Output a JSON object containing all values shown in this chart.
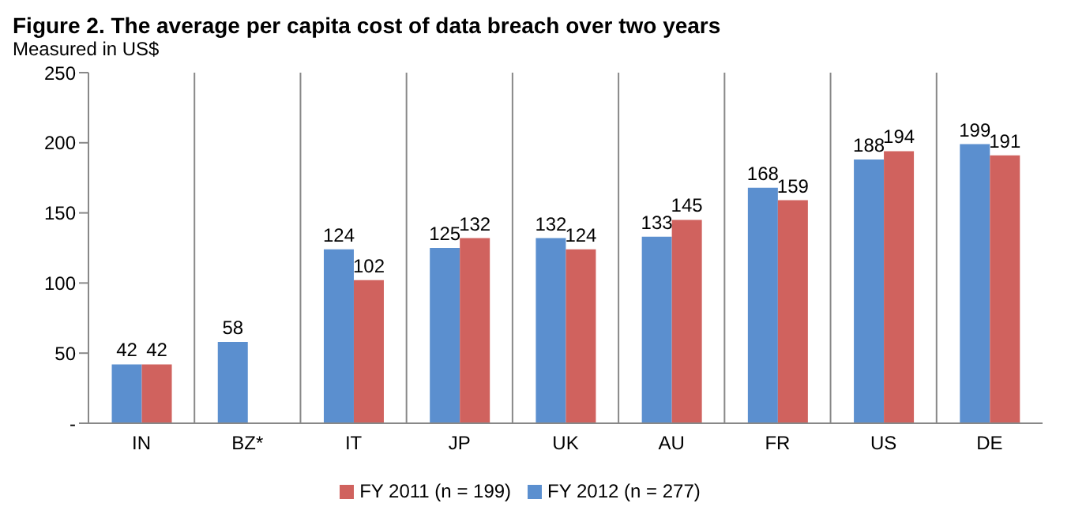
{
  "chart_data": {
    "type": "bar",
    "title": "Figure 2. The average per capita cost of data breach over two years",
    "subtitle": "Measured in US$",
    "categories": [
      "IN",
      "BZ*",
      "IT",
      "JP",
      "UK",
      "AU",
      "FR",
      "US",
      "DE"
    ],
    "series": [
      {
        "name": "FY 2012 (n = 277)",
        "color": "#5b8fcf",
        "values": [
          42,
          58,
          124,
          125,
          132,
          133,
          168,
          188,
          199
        ]
      },
      {
        "name": "FY 2011 (n = 199)",
        "color": "#d0625e",
        "values": [
          42,
          null,
          102,
          132,
          124,
          145,
          159,
          194,
          191
        ]
      }
    ],
    "ylim": [
      0,
      250
    ],
    "yticks": [
      {
        "value": 0,
        "label": "-"
      },
      50,
      100,
      150,
      200,
      250
    ],
    "grid": "x",
    "legend": "bottom",
    "data_labels": true
  }
}
